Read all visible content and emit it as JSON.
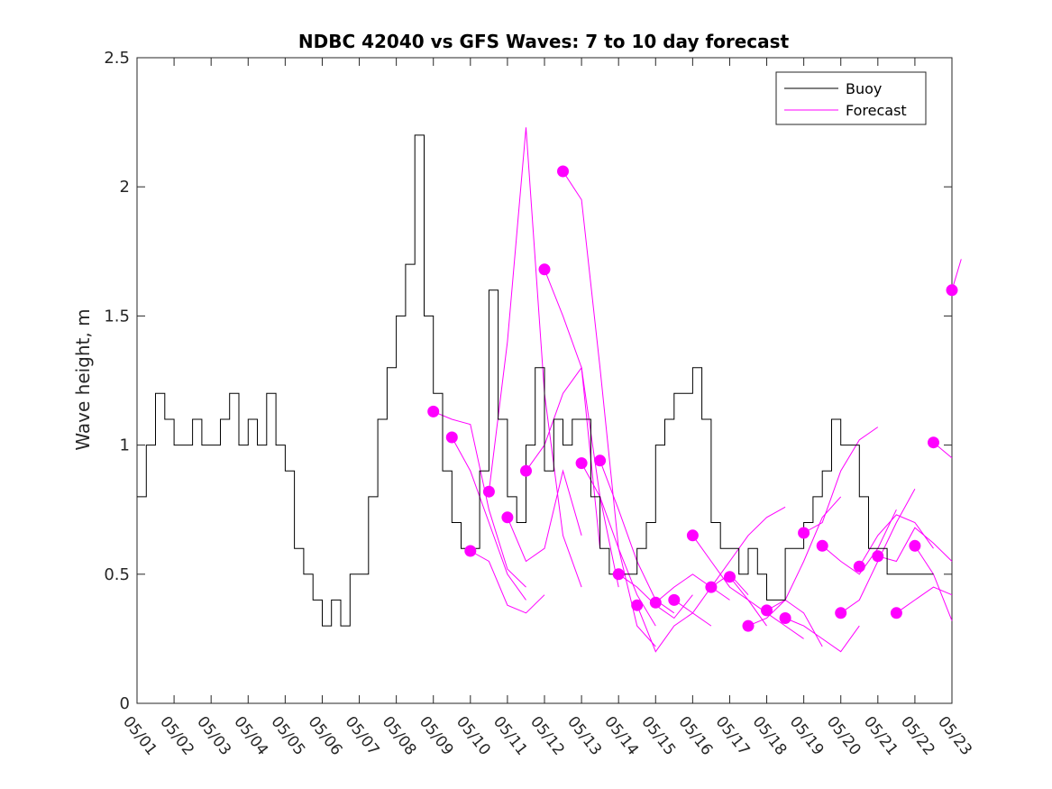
{
  "chart_data": {
    "type": "line",
    "title": "NDBC 42040 vs GFS Waves: 7 to 10 day forecast",
    "xlabel": "",
    "ylabel": "Wave height, m",
    "xlim": [
      "05/01",
      "05/23"
    ],
    "ylim": [
      0,
      2.5
    ],
    "yticks": [
      "0",
      "0.5",
      "1",
      "1.5",
      "2",
      "2.5"
    ],
    "xticks": [
      "05/01",
      "05/02",
      "05/03",
      "05/04",
      "05/05",
      "05/06",
      "05/07",
      "05/08",
      "05/09",
      "05/10",
      "05/11",
      "05/12",
      "05/13",
      "05/14",
      "05/15",
      "05/16",
      "05/17",
      "05/18",
      "05/19",
      "05/20",
      "05/21",
      "05/22",
      "05/23"
    ],
    "grid": false,
    "legend": {
      "position": "top-right",
      "entries": [
        "Buoy",
        "Forecast"
      ]
    },
    "colors": {
      "buoy": "#000000",
      "forecast": "#ff00ff"
    },
    "series": [
      {
        "name": "Buoy",
        "x": [
          "05/01 00:00",
          "05/01 06:00",
          "05/01 12:00",
          "05/01 18:00",
          "05/02 00:00",
          "05/02 06:00",
          "05/02 12:00",
          "05/02 18:00",
          "05/03 00:00",
          "05/03 06:00",
          "05/03 12:00",
          "05/03 18:00",
          "05/04 00:00",
          "05/04 06:00",
          "05/04 12:00",
          "05/04 18:00",
          "05/05 00:00",
          "05/05 06:00",
          "05/05 12:00",
          "05/05 18:00",
          "05/06 00:00",
          "05/06 06:00",
          "05/06 12:00",
          "05/06 18:00",
          "05/07 00:00",
          "05/07 06:00",
          "05/07 12:00",
          "05/07 18:00",
          "05/08 00:00",
          "05/08 06:00",
          "05/08 12:00",
          "05/08 18:00",
          "05/09 00:00",
          "05/09 06:00",
          "05/09 12:00",
          "05/09 18:00",
          "05/10 00:00",
          "05/10 06:00",
          "05/10 12:00",
          "05/10 18:00",
          "05/11 00:00",
          "05/11 06:00",
          "05/11 12:00",
          "05/11 18:00",
          "05/12 00:00",
          "05/12 06:00",
          "05/12 12:00",
          "05/12 18:00",
          "05/13 00:00",
          "05/13 06:00",
          "05/13 12:00",
          "05/13 18:00",
          "05/14 00:00",
          "05/14 06:00",
          "05/14 12:00",
          "05/14 18:00",
          "05/15 00:00",
          "05/15 06:00",
          "05/15 12:00",
          "05/15 18:00",
          "05/16 00:00",
          "05/16 06:00",
          "05/16 12:00",
          "05/16 18:00",
          "05/17 00:00",
          "05/17 06:00",
          "05/17 12:00",
          "05/17 18:00",
          "05/18 00:00",
          "05/18 06:00",
          "05/18 12:00",
          "05/18 18:00",
          "05/19 00:00",
          "05/19 06:00",
          "05/19 12:00",
          "05/19 18:00",
          "05/20 00:00",
          "05/20 06:00",
          "05/20 12:00",
          "05/20 18:00",
          "05/21 00:00",
          "05/21 06:00",
          "05/21 12:00",
          "05/21 18:00",
          "05/22 00:00",
          "05/22 06:00",
          "05/22 12:00"
        ],
        "values": [
          0.8,
          1.0,
          1.2,
          1.1,
          1.0,
          1.0,
          1.1,
          1.0,
          1.0,
          1.1,
          1.2,
          1.0,
          1.1,
          1.0,
          1.2,
          1.0,
          0.9,
          0.6,
          0.5,
          0.4,
          0.3,
          0.4,
          0.3,
          0.5,
          0.5,
          0.8,
          1.1,
          1.3,
          1.5,
          1.7,
          2.2,
          1.5,
          1.2,
          0.9,
          0.7,
          0.6,
          0.6,
          0.9,
          1.6,
          1.1,
          0.8,
          0.7,
          1.0,
          1.3,
          0.9,
          1.1,
          1.0,
          1.1,
          1.1,
          0.8,
          0.6,
          0.5,
          0.5,
          0.5,
          0.6,
          0.7,
          1.0,
          1.1,
          1.2,
          1.2,
          1.3,
          1.1,
          0.7,
          0.6,
          0.6,
          0.5,
          0.6,
          0.5,
          0.4,
          0.4,
          0.6,
          0.6,
          0.7,
          0.8,
          0.9,
          1.1,
          1.0,
          1.0,
          0.8,
          0.6,
          0.6,
          0.5,
          0.5,
          0.5,
          0.5,
          0.5,
          0.5
        ]
      },
      {
        "name": "Forecast",
        "runs": [
          {
            "x": [
              "05/09 00:00",
              "05/09 12:00",
              "05/10 00:00",
              "05/10 12:00",
              "05/11 00:00",
              "05/11 12:00"
            ],
            "values": [
              1.13,
              1.1,
              1.08,
              0.75,
              0.52,
              0.45
            ]
          },
          {
            "x": [
              "05/09 12:00",
              "05/10 00:00",
              "05/10 12:00",
              "05/11 00:00",
              "05/11 12:00"
            ],
            "values": [
              1.03,
              0.9,
              0.7,
              0.5,
              0.4
            ]
          },
          {
            "x": [
              "05/10 00:00",
              "05/10 12:00",
              "05/11 00:00",
              "05/11 12:00",
              "05/12 00:00"
            ],
            "values": [
              0.59,
              0.55,
              0.38,
              0.35,
              0.42
            ]
          },
          {
            "x": [
              "05/10 12:00",
              "05/11 00:00",
              "05/11 12:00",
              "05/12 00:00",
              "05/12 12:00",
              "05/13 00:00"
            ],
            "values": [
              0.82,
              1.4,
              2.23,
              1.2,
              0.65,
              0.45
            ]
          },
          {
            "x": [
              "05/11 00:00",
              "05/11 12:00",
              "05/12 00:00",
              "05/12 12:00",
              "05/13 00:00"
            ],
            "values": [
              0.72,
              0.55,
              0.6,
              0.9,
              0.65
            ]
          },
          {
            "x": [
              "05/11 12:00",
              "05/12 00:00",
              "05/12 12:00",
              "05/13 00:00",
              "05/13 12:00"
            ],
            "values": [
              0.9,
              1.0,
              1.2,
              1.3,
              0.6
            ]
          },
          {
            "x": [
              "05/12 00:00",
              "05/12 12:00",
              "05/13 00:00",
              "05/13 12:00",
              "05/14 00:00"
            ],
            "values": [
              1.68,
              1.5,
              1.3,
              0.8,
              0.45
            ]
          },
          {
            "x": [
              "05/12 12:00",
              "05/13 00:00",
              "05/13 12:00",
              "05/14 00:00",
              "05/14 12:00",
              "05/15 00:00"
            ],
            "values": [
              2.06,
              1.95,
              1.3,
              0.6,
              0.3,
              0.22
            ]
          },
          {
            "x": [
              "05/13 00:00",
              "05/13 12:00",
              "05/14 00:00",
              "05/14 12:00",
              "05/15 00:00"
            ],
            "values": [
              0.93,
              0.8,
              0.6,
              0.42,
              0.3
            ]
          },
          {
            "x": [
              "05/13 12:00",
              "05/14 00:00",
              "05/14 12:00",
              "05/15 00:00",
              "05/15 12:00"
            ],
            "values": [
              0.94,
              0.75,
              0.55,
              0.4,
              0.35
            ]
          },
          {
            "x": [
              "05/14 00:00",
              "05/14 12:00",
              "05/15 00:00",
              "05/15 12:00",
              "05/16 00:00"
            ],
            "values": [
              0.5,
              0.45,
              0.38,
              0.33,
              0.42
            ]
          },
          {
            "x": [
              "05/14 12:00",
              "05/15 00:00",
              "05/15 12:00",
              "05/16 00:00",
              "05/16 12:00"
            ],
            "values": [
              0.38,
              0.2,
              0.3,
              0.35,
              0.3
            ]
          },
          {
            "x": [
              "05/15 00:00",
              "05/15 12:00",
              "05/16 00:00",
              "05/16 12:00",
              "05/17 00:00"
            ],
            "values": [
              0.39,
              0.45,
              0.5,
              0.45,
              0.4
            ]
          },
          {
            "x": [
              "05/15 12:00",
              "05/16 00:00",
              "05/16 12:00",
              "05/17 00:00",
              "05/17 12:00"
            ],
            "values": [
              0.4,
              0.35,
              0.45,
              0.5,
              0.42
            ]
          },
          {
            "x": [
              "05/16 00:00",
              "05/16 12:00",
              "05/17 00:00",
              "05/17 12:00",
              "05/18 00:00"
            ],
            "values": [
              0.65,
              0.55,
              0.45,
              0.4,
              0.3
            ]
          },
          {
            "x": [
              "05/16 12:00",
              "05/17 00:00",
              "05/17 12:00",
              "05/18 00:00",
              "05/18 12:00"
            ],
            "values": [
              0.45,
              0.55,
              0.65,
              0.72,
              0.76
            ]
          },
          {
            "x": [
              "05/17 00:00",
              "05/17 12:00",
              "05/18 00:00",
              "05/18 12:00",
              "05/19 00:00"
            ],
            "values": [
              0.49,
              0.4,
              0.35,
              0.3,
              0.25
            ]
          },
          {
            "x": [
              "05/17 12:00",
              "05/18 00:00",
              "05/18 12:00",
              "05/19 00:00",
              "05/19 12:00"
            ],
            "values": [
              0.3,
              0.33,
              0.4,
              0.35,
              0.22
            ]
          },
          {
            "x": [
              "05/18 00:00",
              "05/18 12:00",
              "05/19 00:00",
              "05/19 12:00",
              "05/20 00:00"
            ],
            "values": [
              0.36,
              0.4,
              0.55,
              0.72,
              0.8
            ]
          },
          {
            "x": [
              "05/18 12:00",
              "05/19 00:00",
              "05/19 12:00",
              "05/20 00:00",
              "05/20 12:00"
            ],
            "values": [
              0.33,
              0.3,
              0.25,
              0.2,
              0.3
            ]
          },
          {
            "x": [
              "05/19 00:00",
              "05/19 12:00",
              "05/20 00:00",
              "05/20 12:00",
              "05/21 00:00"
            ],
            "values": [
              0.66,
              0.7,
              0.9,
              1.02,
              1.07
            ]
          },
          {
            "x": [
              "05/19 12:00",
              "05/20 00:00",
              "05/20 12:00",
              "05/21 00:00",
              "05/21 12:00"
            ],
            "values": [
              0.61,
              0.55,
              0.5,
              0.6,
              0.75
            ]
          },
          {
            "x": [
              "05/20 00:00",
              "05/20 12:00",
              "05/21 00:00",
              "05/21 12:00",
              "05/22 00:00"
            ],
            "values": [
              0.35,
              0.4,
              0.55,
              0.7,
              0.83
            ]
          },
          {
            "x": [
              "05/20 12:00",
              "05/21 00:00",
              "05/21 12:00",
              "05/22 00:00",
              "05/22 12:00"
            ],
            "values": [
              0.53,
              0.65,
              0.73,
              0.7,
              0.6
            ]
          },
          {
            "x": [
              "05/21 00:00",
              "05/21 12:00",
              "05/22 00:00",
              "05/22 12:00",
              "05/23 00:00"
            ],
            "values": [
              0.57,
              0.55,
              0.68,
              0.62,
              0.55
            ]
          },
          {
            "x": [
              "05/21 12:00",
              "05/22 00:00",
              "05/22 12:00",
              "05/23 00:00"
            ],
            "values": [
              0.35,
              0.4,
              0.45,
              0.42
            ]
          },
          {
            "x": [
              "05/22 00:00",
              "05/22 12:00",
              "05/23 00:00"
            ],
            "values": [
              0.61,
              0.5,
              0.32
            ]
          },
          {
            "x": [
              "05/22 12:00",
              "05/23 00:00"
            ],
            "values": [
              1.01,
              0.95
            ]
          },
          {
            "x": [
              "05/23 00:00",
              "05/23 06:00"
            ],
            "values": [
              1.6,
              1.72
            ]
          }
        ],
        "start_points": {
          "x": [
            "05/09 00:00",
            "05/09 12:00",
            "05/10 00:00",
            "05/10 12:00",
            "05/11 00:00",
            "05/11 12:00",
            "05/12 00:00",
            "05/12 12:00",
            "05/13 00:00",
            "05/13 12:00",
            "05/14 00:00",
            "05/14 12:00",
            "05/15 00:00",
            "05/15 12:00",
            "05/16 00:00",
            "05/16 12:00",
            "05/17 00:00",
            "05/17 12:00",
            "05/18 00:00",
            "05/18 12:00",
            "05/19 00:00",
            "05/19 12:00",
            "05/20 00:00",
            "05/20 12:00",
            "05/21 00:00",
            "05/21 12:00",
            "05/22 00:00",
            "05/22 12:00",
            "05/23 00:00"
          ],
          "values": [
            1.13,
            1.03,
            0.59,
            0.82,
            0.72,
            0.9,
            1.68,
            2.06,
            0.93,
            0.94,
            0.5,
            0.38,
            0.39,
            0.4,
            0.65,
            0.45,
            0.49,
            0.3,
            0.36,
            0.33,
            0.66,
            0.61,
            0.35,
            0.53,
            0.57,
            0.35,
            0.61,
            1.01,
            1.6
          ]
        }
      }
    ]
  }
}
